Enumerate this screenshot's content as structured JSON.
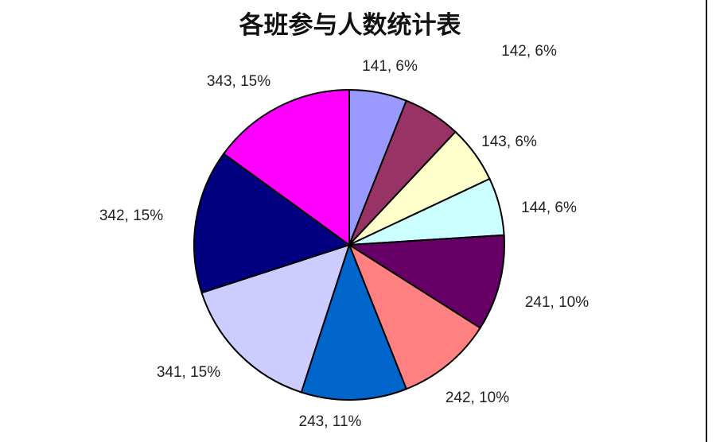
{
  "chart_data": {
    "type": "pie",
    "title": "各班参与人数统计表",
    "start_angle": "12 o'clock, clockwise",
    "slices": [
      {
        "label": "141",
        "percent": 6,
        "color": "#9999FF",
        "text": "141, 6%"
      },
      {
        "label": "142",
        "percent": 6,
        "color": "#993366",
        "text": "142, 6%"
      },
      {
        "label": "143",
        "percent": 6,
        "color": "#FFFFCC",
        "text": "143, 6%"
      },
      {
        "label": "144",
        "percent": 6,
        "color": "#CCFFFF",
        "text": "144, 6%"
      },
      {
        "label": "241",
        "percent": 10,
        "color": "#660066",
        "text": "241, 10%"
      },
      {
        "label": "242",
        "percent": 10,
        "color": "#FF8080",
        "text": "242, 10%"
      },
      {
        "label": "243",
        "percent": 11,
        "color": "#0066CC",
        "text": "243, 11%"
      },
      {
        "label": "341",
        "percent": 15,
        "color": "#CCCCFF",
        "text": "341, 15%"
      },
      {
        "label": "342",
        "percent": 15,
        "color": "#000080",
        "text": "342, 15%"
      },
      {
        "label": "343",
        "percent": 15,
        "color": "#FF00FF",
        "text": "343, 15%"
      }
    ],
    "legend": "none"
  }
}
